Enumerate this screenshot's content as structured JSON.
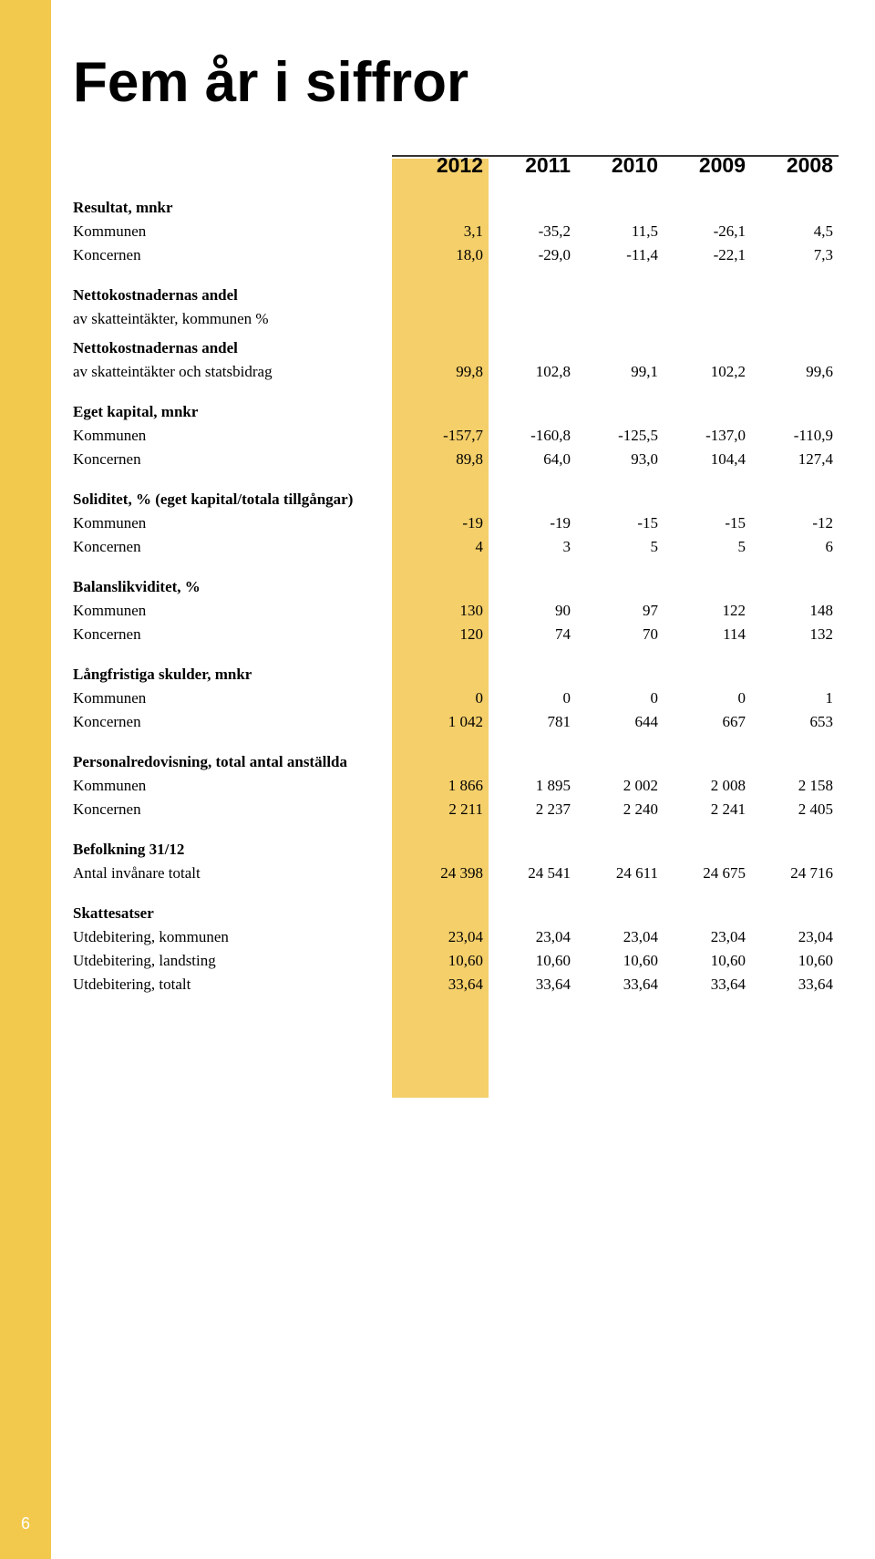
{
  "page_number": "6",
  "title": "Fem år i siffror",
  "years": [
    "2012",
    "2011",
    "2010",
    "2009",
    "2008"
  ],
  "highlight_col_index": 0,
  "colors": {
    "sidebar": "#f2c94c",
    "highlight": "#f4cf6a",
    "rule": "#333333",
    "text": "#000000",
    "page_num": "#ffffff"
  },
  "sections": [
    {
      "header": "Resultat, mnkr",
      "rows": [
        {
          "label": "Kommunen",
          "vals": [
            "3,1",
            "-35,2",
            "11,5",
            "-26,1",
            "4,5"
          ]
        },
        {
          "label": "Koncernen",
          "vals": [
            "18,0",
            "-29,0",
            "-11,4",
            "-22,1",
            "7,3"
          ]
        }
      ]
    },
    {
      "header": "Nettokostnadernas andel",
      "rows": [
        {
          "label": "av skatteintäkter, kommunen %",
          "vals": [
            "",
            "",
            "",
            "",
            ""
          ]
        }
      ]
    },
    {
      "header": "Nettokostnadernas andel",
      "rows": [
        {
          "label": "av skatteintäkter och statsbidrag",
          "vals": [
            "99,8",
            "102,8",
            "99,1",
            "102,2",
            "99,6"
          ]
        }
      ]
    },
    {
      "header": "Eget kapital, mnkr",
      "rows": [
        {
          "label": "Kommunen",
          "vals": [
            "-157,7",
            "-160,8",
            "-125,5",
            "-137,0",
            "-110,9"
          ]
        },
        {
          "label": "Koncernen",
          "vals": [
            "89,8",
            "64,0",
            "93,0",
            "104,4",
            "127,4"
          ]
        }
      ]
    },
    {
      "header": "Soliditet, % (eget kapital/totala tillgångar)",
      "rows": [
        {
          "label": "Kommunen",
          "vals": [
            "-19",
            "-19",
            "-15",
            "-15",
            "-12"
          ]
        },
        {
          "label": "Koncernen",
          "vals": [
            "4",
            "3",
            "5",
            "5",
            "6"
          ]
        }
      ]
    },
    {
      "header": "Balanslikviditet, %",
      "rows": [
        {
          "label": "Kommunen",
          "vals": [
            "130",
            "90",
            "97",
            "122",
            "148"
          ]
        },
        {
          "label": "Koncernen",
          "vals": [
            "120",
            "74",
            "70",
            "114",
            "132"
          ]
        }
      ]
    },
    {
      "header": "Långfristiga skulder, mnkr",
      "rows": [
        {
          "label": "Kommunen",
          "vals": [
            "0",
            "0",
            "0",
            "0",
            "1"
          ]
        },
        {
          "label": "Koncernen",
          "vals": [
            "1 042",
            "781",
            "644",
            "667",
            "653"
          ]
        }
      ]
    },
    {
      "header": "Personalredovisning, total antal anställda",
      "rows": [
        {
          "label": "Kommunen",
          "vals": [
            "1 866",
            "1 895",
            "2 002",
            "2 008",
            "2 158"
          ]
        },
        {
          "label": "Koncernen",
          "vals": [
            "2 211",
            "2 237",
            "2 240",
            "2 241",
            "2 405"
          ]
        }
      ]
    },
    {
      "header": "Befolkning 31/12",
      "rows": [
        {
          "label": "Antal invånare totalt",
          "vals": [
            "24 398",
            "24 541",
            "24 611",
            "24 675",
            "24 716"
          ]
        }
      ]
    },
    {
      "header": "Skattesatser",
      "rows": [
        {
          "label": "Utdebitering, kommunen",
          "vals": [
            "23,04",
            "23,04",
            "23,04",
            "23,04",
            "23,04"
          ]
        },
        {
          "label": "Utdebitering, landsting",
          "vals": [
            "10,60",
            "10,60",
            "10,60",
            "10,60",
            "10,60"
          ]
        },
        {
          "label": "Utdebitering, totalt",
          "vals": [
            "33,64",
            "33,64",
            "33,64",
            "33,64",
            "33,64"
          ]
        }
      ]
    }
  ]
}
